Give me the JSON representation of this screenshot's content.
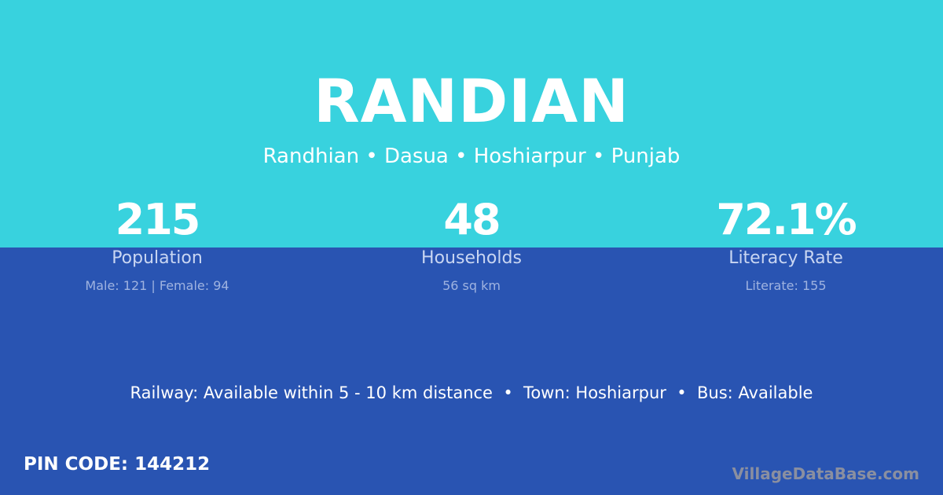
{
  "colors": {
    "top_bg": "#38d2de",
    "bottom_bg": "#2954b2"
  },
  "village": {
    "name": "RANDIAN",
    "subtitle": "Randhian • Dasua • Hoshiarpur • Punjab"
  },
  "stats": [
    {
      "value": "215",
      "label": "Population",
      "detail": "Male: 121 | Female: 94"
    },
    {
      "value": "48",
      "label": "Households",
      "detail": "56 sq km"
    },
    {
      "value": "72.1%",
      "label": "Literacy Rate",
      "detail": "Literate: 155"
    }
  ],
  "amenities": "Railway: Available within 5 - 10 km distance  •  Town: Hoshiarpur  •  Bus: Available",
  "pin_code": "PIN CODE: 144212",
  "brand": "VillageDataBase.com"
}
